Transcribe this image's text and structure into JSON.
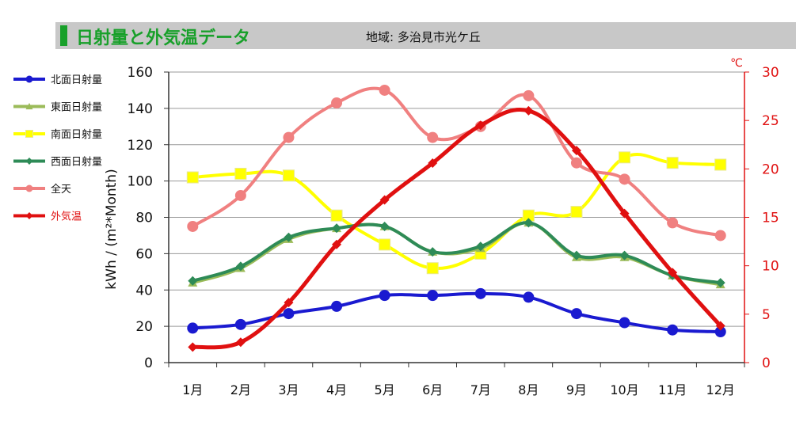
{
  "header": {
    "title": "日射量と外気温データ",
    "region": "地域: 多治見市光ケ丘"
  },
  "colors": {
    "title_green": "#18a02a",
    "header_bg": "#c8c8c8",
    "right_axis": "#e01010"
  },
  "chart_data": {
    "type": "line",
    "categories": [
      "1月",
      "2月",
      "3月",
      "4月",
      "5月",
      "6月",
      "7月",
      "8月",
      "9月",
      "10月",
      "11月",
      "12月"
    ],
    "ylabel": "kWh / (m²*Month)",
    "ylim": [
      0,
      160
    ],
    "yticks": [
      "0",
      "20",
      "40",
      "60",
      "80",
      "100",
      "120",
      "140",
      "160"
    ],
    "y2label": "℃",
    "y2lim": [
      0,
      30
    ],
    "y2ticks": [
      "0",
      "5",
      "10",
      "15",
      "20",
      "25",
      "30"
    ],
    "grid": true,
    "legend_position": "left",
    "series": [
      {
        "name": "北面日射量",
        "axis": "left",
        "color": "#1a1ad0",
        "marker": "circle",
        "values": [
          19,
          21,
          27,
          31,
          37,
          37,
          38,
          36,
          27,
          22,
          18,
          17
        ]
      },
      {
        "name": "東面日射量",
        "axis": "left",
        "color": "#9bbb59",
        "marker": "triangle",
        "values": [
          44,
          52,
          68,
          74,
          75,
          61,
          63,
          77,
          58,
          58,
          48,
          43
        ]
      },
      {
        "name": "南面日射量",
        "axis": "left",
        "color": "#ffff00",
        "marker": "square",
        "values": [
          102,
          104,
          103,
          81,
          65,
          52,
          60,
          81,
          83,
          113,
          110,
          109
        ]
      },
      {
        "name": "西面日射量",
        "axis": "left",
        "color": "#2e8b57",
        "marker": "diamond",
        "values": [
          45,
          53,
          69,
          74,
          75,
          61,
          64,
          77,
          59,
          59,
          48,
          44
        ]
      },
      {
        "name": "全天",
        "axis": "left",
        "color": "#f08080",
        "marker": "circle",
        "values": [
          75,
          92,
          124,
          143,
          150,
          124,
          130,
          147,
          110,
          101,
          77,
          70
        ]
      },
      {
        "name": "外気温",
        "axis": "right",
        "color": "#e01010",
        "marker": "diamond",
        "values": [
          1.6,
          2.1,
          6.2,
          12.2,
          16.8,
          20.6,
          24.5,
          26.0,
          21.9,
          15.4,
          9.3,
          3.8
        ]
      }
    ]
  }
}
